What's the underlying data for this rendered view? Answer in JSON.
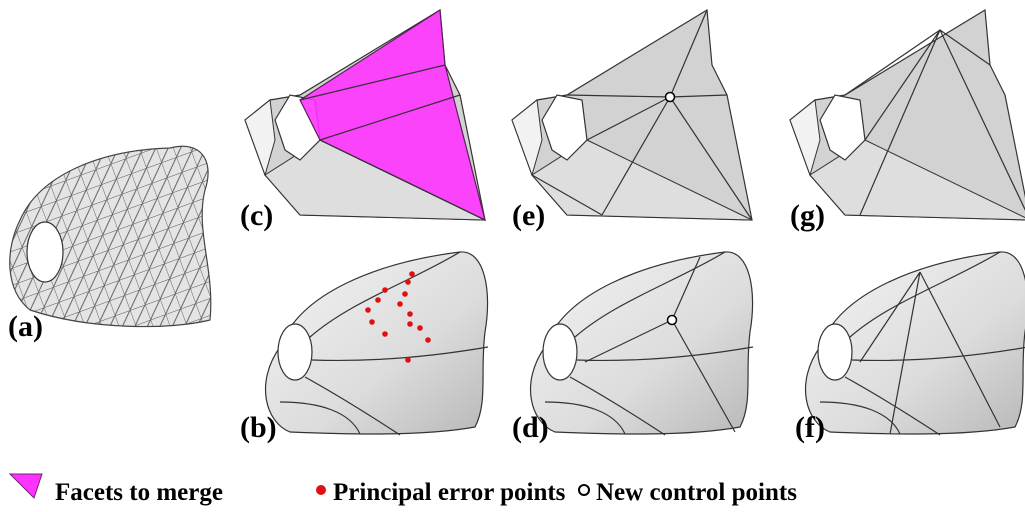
{
  "panels": [
    "(a)",
    "(b)",
    "(c)",
    "(d)",
    "(e)",
    "(f)",
    "(g)"
  ],
  "legend": [
    "Facets to merge",
    "Principal error points",
    "New control points"
  ]
}
